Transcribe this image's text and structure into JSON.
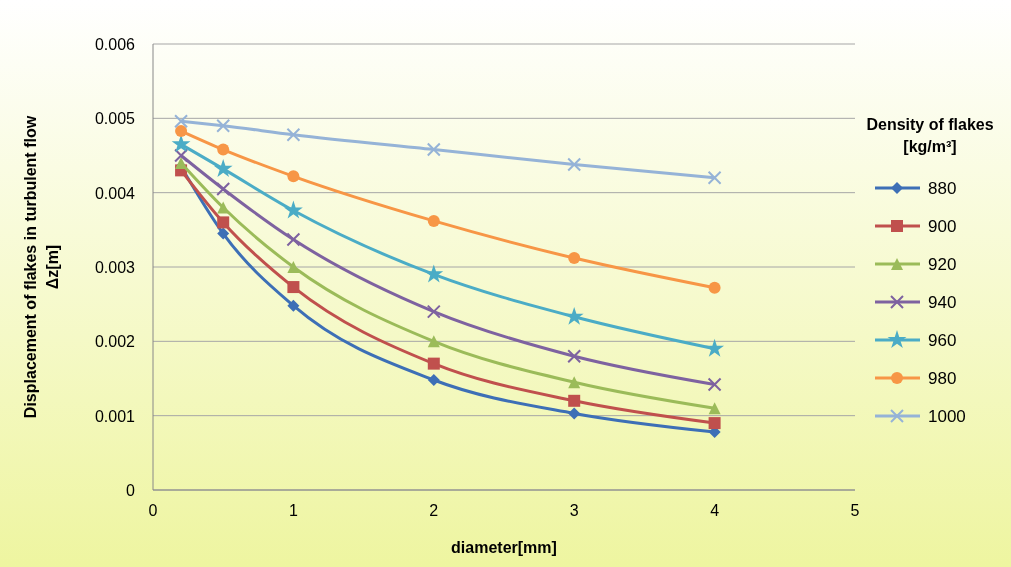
{
  "chart_data": {
    "type": "line",
    "xlabel": "diameter[mm]",
    "ylabel": "Displacement of flakes in turbulent flow Δz[m]",
    "legend_title": "Density of flakes [kg/m³]",
    "x": [
      0.2,
      0.5,
      1,
      2,
      3,
      4
    ],
    "xlim": [
      0,
      5
    ],
    "xticks": [
      0,
      1,
      2,
      3,
      4,
      5
    ],
    "ylim": [
      0,
      0.006
    ],
    "yticks": [
      0,
      0.001,
      0.002,
      0.003,
      0.004,
      0.005,
      0.006
    ],
    "grid": "y",
    "legend": "right",
    "line_style": "solid",
    "series": [
      {
        "name": "880",
        "color": "#3d6fb6",
        "marker": "diamond",
        "values": [
          0.00435,
          0.00345,
          0.00248,
          0.00148,
          0.00103,
          0.00078
        ]
      },
      {
        "name": "900",
        "color": "#c0504d",
        "marker": "square",
        "values": [
          0.0043,
          0.0036,
          0.00273,
          0.0017,
          0.0012,
          0.0009
        ]
      },
      {
        "name": "920",
        "color": "#9bbb59",
        "marker": "triangle",
        "values": [
          0.0044,
          0.0038,
          0.003,
          0.002,
          0.00145,
          0.0011
        ]
      },
      {
        "name": "940",
        "color": "#7e62a0",
        "marker": "cross",
        "values": [
          0.0045,
          0.00405,
          0.00337,
          0.0024,
          0.0018,
          0.00142
        ]
      },
      {
        "name": "960",
        "color": "#4bacc6",
        "marker": "star",
        "values": [
          0.00465,
          0.00432,
          0.00376,
          0.0029,
          0.00233,
          0.0019
        ]
      },
      {
        "name": "980",
        "color": "#f79646",
        "marker": "circle",
        "values": [
          0.00483,
          0.00458,
          0.00422,
          0.00362,
          0.00312,
          0.00272
        ]
      },
      {
        "name": "1000",
        "color": "#95b3d7",
        "marker": "cross",
        "values": [
          0.00496,
          0.0049,
          0.00478,
          0.00458,
          0.00438,
          0.0042
        ]
      }
    ]
  }
}
